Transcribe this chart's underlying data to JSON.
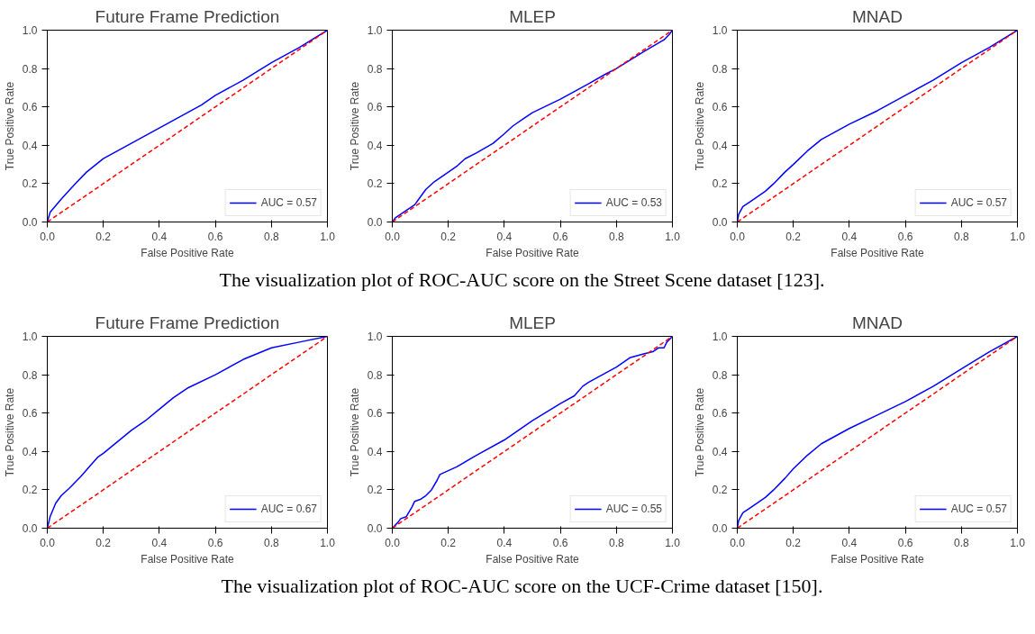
{
  "chart_data": [
    {
      "type": "line",
      "title": "Future Frame Prediction",
      "xlabel": "False Positive Rate",
      "ylabel": "True Positive Rate",
      "xlim": [
        0,
        1
      ],
      "ylim": [
        0,
        1
      ],
      "xticks": [
        {
          "value": 0,
          "label": "0.0"
        },
        {
          "value": 0.2,
          "label": "0.2"
        },
        {
          "value": 0.4,
          "label": "0.4"
        },
        {
          "value": 0.6,
          "label": "0.6"
        },
        {
          "value": 0.8,
          "label": "0.8"
        },
        {
          "value": 1,
          "label": "1.0"
        }
      ],
      "yticks": [
        {
          "value": 0,
          "label": "0.0"
        },
        {
          "value": 0.2,
          "label": "0.2"
        },
        {
          "value": 0.4,
          "label": "0.4"
        },
        {
          "value": 0.6,
          "label": "0.6"
        },
        {
          "value": 0.8,
          "label": "0.8"
        },
        {
          "value": 1,
          "label": "1.0"
        }
      ],
      "legend": "bottom right",
      "series": [
        {
          "name": "AUC = 0.57",
          "color": "#0000ff",
          "line_style": "solid",
          "x": [
            0,
            0.01,
            0.05,
            0.1,
            0.14,
            0.2,
            0.25,
            0.3,
            0.4,
            0.45,
            0.5,
            0.55,
            0.6,
            0.7,
            0.8,
            0.9,
            1
          ],
          "values": [
            0,
            0.05,
            0.12,
            0.2,
            0.26,
            0.33,
            0.37,
            0.41,
            0.49,
            0.53,
            0.57,
            0.61,
            0.66,
            0.74,
            0.83,
            0.91,
            1
          ]
        },
        {
          "color": "#ff0000",
          "line_style": "dashed",
          "x": [
            0,
            1
          ],
          "values": [
            0,
            1
          ]
        }
      ]
    },
    {
      "type": "line",
      "title": "MLEP",
      "xlabel": "False Positive Rate",
      "ylabel": "True Positive Rate",
      "xlim": [
        0,
        1
      ],
      "ylim": [
        0,
        1
      ],
      "xticks": [
        {
          "value": 0,
          "label": "0.0"
        },
        {
          "value": 0.2,
          "label": "0.2"
        },
        {
          "value": 0.4,
          "label": "0.4"
        },
        {
          "value": 0.6,
          "label": "0.6"
        },
        {
          "value": 0.8,
          "label": "0.8"
        },
        {
          "value": 1,
          "label": "1.0"
        }
      ],
      "yticks": [
        {
          "value": 0,
          "label": "0.0"
        },
        {
          "value": 0.2,
          "label": "0.2"
        },
        {
          "value": 0.4,
          "label": "0.4"
        },
        {
          "value": 0.6,
          "label": "0.6"
        },
        {
          "value": 0.8,
          "label": "0.8"
        },
        {
          "value": 1,
          "label": "1.0"
        }
      ],
      "legend": "bottom right",
      "annotations": [
        "The visualization plot of ROC-AUC score on the Street Scene dataset [123]."
      ],
      "series": [
        {
          "name": "AUC = 0.53",
          "color": "#0000ff",
          "line_style": "solid",
          "x": [
            0,
            0.01,
            0.05,
            0.08,
            0.1,
            0.12,
            0.15,
            0.2,
            0.23,
            0.26,
            0.3,
            0.36,
            0.4,
            0.43,
            0.47,
            0.5,
            0.6,
            0.7,
            0.76,
            0.8,
            0.9,
            0.97,
            0.99,
            1
          ],
          "values": [
            0,
            0.02,
            0.06,
            0.09,
            0.13,
            0.17,
            0.21,
            0.26,
            0.29,
            0.33,
            0.36,
            0.41,
            0.46,
            0.5,
            0.54,
            0.57,
            0.64,
            0.72,
            0.77,
            0.8,
            0.89,
            0.95,
            0.98,
            1
          ]
        },
        {
          "color": "#ff0000",
          "line_style": "dashed",
          "x": [
            0,
            1
          ],
          "values": [
            0,
            1
          ]
        }
      ]
    },
    {
      "type": "line",
      "title": "MNAD",
      "xlabel": "False Positive Rate",
      "ylabel": "True Positive Rate",
      "xlim": [
        0,
        1
      ],
      "ylim": [
        0,
        1
      ],
      "xticks": [
        {
          "value": 0,
          "label": "0.0"
        },
        {
          "value": 0.2,
          "label": "0.2"
        },
        {
          "value": 0.4,
          "label": "0.4"
        },
        {
          "value": 0.6,
          "label": "0.6"
        },
        {
          "value": 0.8,
          "label": "0.8"
        },
        {
          "value": 1,
          "label": "1.0"
        }
      ],
      "yticks": [
        {
          "value": 0,
          "label": "0.0"
        },
        {
          "value": 0.2,
          "label": "0.2"
        },
        {
          "value": 0.4,
          "label": "0.4"
        },
        {
          "value": 0.6,
          "label": "0.6"
        },
        {
          "value": 0.8,
          "label": "0.8"
        },
        {
          "value": 1,
          "label": "1.0"
        }
      ],
      "legend": "bottom right",
      "series": [
        {
          "name": "AUC = 0.57",
          "color": "#0000ff",
          "line_style": "solid",
          "x": [
            0,
            0.005,
            0.02,
            0.05,
            0.1,
            0.13,
            0.17,
            0.2,
            0.25,
            0.3,
            0.35,
            0.4,
            0.5,
            0.6,
            0.7,
            0.8,
            0.9,
            1
          ],
          "values": [
            0,
            0.04,
            0.08,
            0.11,
            0.16,
            0.2,
            0.26,
            0.3,
            0.37,
            0.43,
            0.47,
            0.51,
            0.58,
            0.66,
            0.74,
            0.83,
            0.91,
            1
          ]
        },
        {
          "color": "#ff0000",
          "line_style": "dashed",
          "x": [
            0,
            1
          ],
          "values": [
            0,
            1
          ]
        }
      ]
    },
    {
      "type": "line",
      "title": "Future Frame Prediction",
      "xlabel": "False Positive Rate",
      "ylabel": "True Positive Rate",
      "xlim": [
        0,
        1
      ],
      "ylim": [
        0,
        1
      ],
      "xticks": [
        {
          "value": 0,
          "label": "0.0"
        },
        {
          "value": 0.2,
          "label": "0.2"
        },
        {
          "value": 0.4,
          "label": "0.4"
        },
        {
          "value": 0.6,
          "label": "0.6"
        },
        {
          "value": 0.8,
          "label": "0.8"
        },
        {
          "value": 1,
          "label": "1.0"
        }
      ],
      "yticks": [
        {
          "value": 0,
          "label": "0.0"
        },
        {
          "value": 0.2,
          "label": "0.2"
        },
        {
          "value": 0.4,
          "label": "0.4"
        },
        {
          "value": 0.6,
          "label": "0.6"
        },
        {
          "value": 0.8,
          "label": "0.8"
        },
        {
          "value": 1,
          "label": "1.0"
        }
      ],
      "legend": "bottom right",
      "series": [
        {
          "name": "AUC = 0.67",
          "color": "#0000ff",
          "line_style": "solid",
          "x": [
            0,
            0.01,
            0.03,
            0.05,
            0.08,
            0.12,
            0.15,
            0.18,
            0.2,
            0.25,
            0.3,
            0.35,
            0.4,
            0.45,
            0.5,
            0.6,
            0.7,
            0.8,
            0.9,
            1
          ],
          "values": [
            0,
            0.06,
            0.13,
            0.17,
            0.21,
            0.27,
            0.32,
            0.37,
            0.39,
            0.45,
            0.51,
            0.56,
            0.62,
            0.68,
            0.73,
            0.8,
            0.88,
            0.94,
            0.97,
            1
          ]
        },
        {
          "color": "#ff0000",
          "line_style": "dashed",
          "x": [
            0,
            1
          ],
          "values": [
            0,
            1
          ]
        }
      ]
    },
    {
      "type": "line",
      "title": "MLEP",
      "xlabel": "False Positive Rate",
      "ylabel": "True Positive Rate",
      "xlim": [
        0,
        1
      ],
      "ylim": [
        0,
        1
      ],
      "xticks": [
        {
          "value": 0,
          "label": "0.0"
        },
        {
          "value": 0.2,
          "label": "0.2"
        },
        {
          "value": 0.4,
          "label": "0.4"
        },
        {
          "value": 0.6,
          "label": "0.6"
        },
        {
          "value": 0.8,
          "label": "0.8"
        },
        {
          "value": 1,
          "label": "1.0"
        }
      ],
      "yticks": [
        {
          "value": 0,
          "label": "0.0"
        },
        {
          "value": 0.2,
          "label": "0.2"
        },
        {
          "value": 0.4,
          "label": "0.4"
        },
        {
          "value": 0.6,
          "label": "0.6"
        },
        {
          "value": 0.8,
          "label": "0.8"
        },
        {
          "value": 1,
          "label": "1.0"
        }
      ],
      "legend": "bottom right",
      "annotations": [
        "The visualization plot of ROC-AUC score on the UCF-Crime dataset [150]."
      ],
      "series": [
        {
          "name": "AUC = 0.55",
          "color": "#0000ff",
          "line_style": "solid",
          "x": [
            0,
            0.02,
            0.03,
            0.05,
            0.07,
            0.08,
            0.1,
            0.12,
            0.14,
            0.16,
            0.17,
            0.2,
            0.23,
            0.3,
            0.4,
            0.45,
            0.5,
            0.6,
            0.65,
            0.68,
            0.7,
            0.75,
            0.8,
            0.85,
            0.9,
            0.93,
            0.95,
            0.97,
            0.98,
            1
          ],
          "values": [
            0,
            0.03,
            0.05,
            0.06,
            0.11,
            0.14,
            0.15,
            0.17,
            0.2,
            0.25,
            0.28,
            0.3,
            0.32,
            0.38,
            0.46,
            0.51,
            0.56,
            0.65,
            0.69,
            0.74,
            0.76,
            0.8,
            0.84,
            0.89,
            0.91,
            0.92,
            0.94,
            0.94,
            0.97,
            1
          ]
        },
        {
          "color": "#ff0000",
          "line_style": "dashed",
          "x": [
            0,
            1
          ],
          "values": [
            0,
            1
          ]
        }
      ]
    },
    {
      "type": "line",
      "title": "MNAD",
      "xlabel": "False Positive Rate",
      "ylabel": "True Positive Rate",
      "xlim": [
        0,
        1
      ],
      "ylim": [
        0,
        1
      ],
      "xticks": [
        {
          "value": 0,
          "label": "0.0"
        },
        {
          "value": 0.2,
          "label": "0.2"
        },
        {
          "value": 0.4,
          "label": "0.4"
        },
        {
          "value": 0.6,
          "label": "0.6"
        },
        {
          "value": 0.8,
          "label": "0.8"
        },
        {
          "value": 1,
          "label": "1.0"
        }
      ],
      "yticks": [
        {
          "value": 0,
          "label": "0.0"
        },
        {
          "value": 0.2,
          "label": "0.2"
        },
        {
          "value": 0.4,
          "label": "0.4"
        },
        {
          "value": 0.6,
          "label": "0.6"
        },
        {
          "value": 0.8,
          "label": "0.8"
        },
        {
          "value": 1,
          "label": "1.0"
        }
      ],
      "legend": "bottom right",
      "series": [
        {
          "name": "AUC = 0.57",
          "color": "#0000ff",
          "line_style": "solid",
          "x": [
            0,
            0.005,
            0.02,
            0.05,
            0.1,
            0.13,
            0.17,
            0.2,
            0.25,
            0.3,
            0.35,
            0.4,
            0.5,
            0.6,
            0.7,
            0.8,
            0.9,
            1
          ],
          "values": [
            0,
            0.04,
            0.08,
            0.11,
            0.16,
            0.2,
            0.26,
            0.31,
            0.38,
            0.44,
            0.48,
            0.52,
            0.59,
            0.66,
            0.74,
            0.83,
            0.92,
            1
          ]
        },
        {
          "color": "#ff0000",
          "line_style": "dashed",
          "x": [
            0,
            1
          ],
          "values": [
            0,
            1
          ]
        }
      ]
    }
  ]
}
